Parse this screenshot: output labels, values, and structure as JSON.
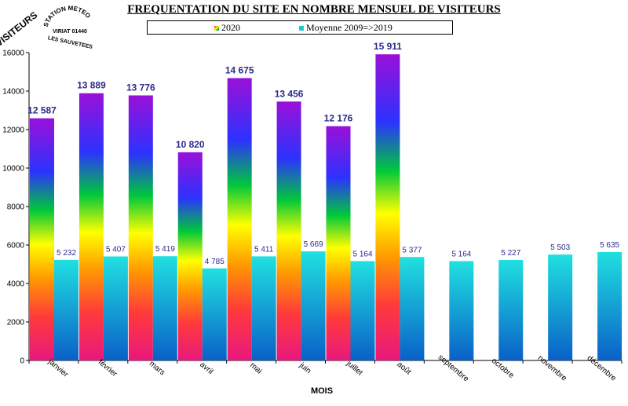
{
  "header": {
    "title": "FREQUENTATION DU SITE EN NOMBRE MENSUEL DE VISITEURS",
    "stamp_text": "STATION METEO VIRIAT 01440 LES SAUVETEES"
  },
  "chart_data": {
    "type": "bar",
    "title": "FREQUENTATION DU SITE EN NOMBRE MENSUEL DE VISITEURS",
    "xlabel": "MOIS",
    "ylabel": "VISITEURS",
    "categories": [
      "janvier",
      "février",
      "mars",
      "avril",
      "mai",
      "juin",
      "juillet",
      "août",
      "septembre",
      "octobre",
      "novembre",
      "décembre"
    ],
    "series": [
      {
        "name": "2020",
        "values": [
          12587,
          13889,
          13776,
          10820,
          14675,
          13456,
          12176,
          15911,
          null,
          null,
          null,
          null
        ],
        "labels": [
          "12 587",
          "13 889",
          "13 776",
          "10 820",
          "14 675",
          "13 456",
          "12 176",
          "15 911",
          "",
          "",
          "",
          ""
        ],
        "fill": "rainbow-gradient"
      },
      {
        "name": "Moyenne 2009=>2019",
        "values": [
          5232,
          5407,
          5419,
          4785,
          5411,
          5669,
          5164,
          5377,
          5164,
          5227,
          5503,
          5635
        ],
        "labels": [
          "5 232",
          "5 407",
          "5 419",
          "4 785",
          "5 411",
          "5 669",
          "5 164",
          "5 377",
          "5 164",
          "5 227",
          "5 503",
          "5 635"
        ],
        "color": "#1fc7d8"
      }
    ],
    "ylim": [
      0,
      16000
    ],
    "yticks": [
      0,
      2000,
      4000,
      6000,
      8000,
      10000,
      12000,
      14000,
      16000
    ],
    "grid": false,
    "legend_position": "top-center",
    "label_color": "#2b2b8c"
  }
}
